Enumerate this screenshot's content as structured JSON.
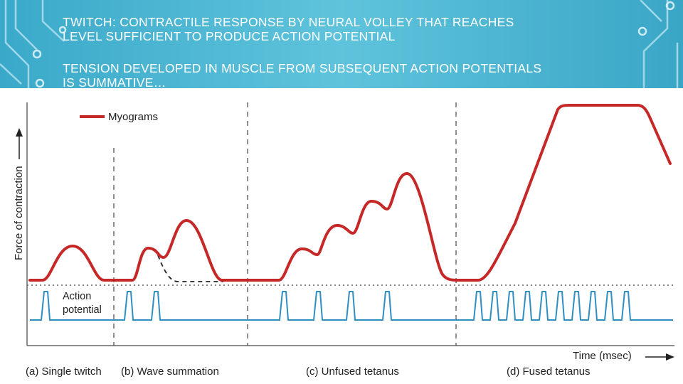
{
  "slide": {
    "title": "TWITCH: CONTRACTILE RESPONSE BY NEURAL VOLLEY THAT REACHES\nLEVEL SUFFICIENT TO PRODUCE  ACTION POTENTIAL",
    "subtitle": "TENSION DEVELOPED IN MUSCLE FROM SUBSEQUENT ACTION POTENTIALS\nIS SUMMATIVE…"
  },
  "figure": {
    "y_axis_label": "Force of contraction",
    "x_axis_label": "Time (msec)",
    "legend_myograms": "Myograms",
    "label_action": "Action",
    "label_potential": "potential",
    "panels": {
      "a": "(a) Single twitch",
      "b": "(b) Wave summation",
      "c": "(c) Unfused tetanus",
      "d": "(d) Fused tetanus"
    },
    "colors": {
      "myogram": "#c62828",
      "action_potential": "#2f8fc0",
      "background_accent": "#4ab8d4"
    }
  }
}
